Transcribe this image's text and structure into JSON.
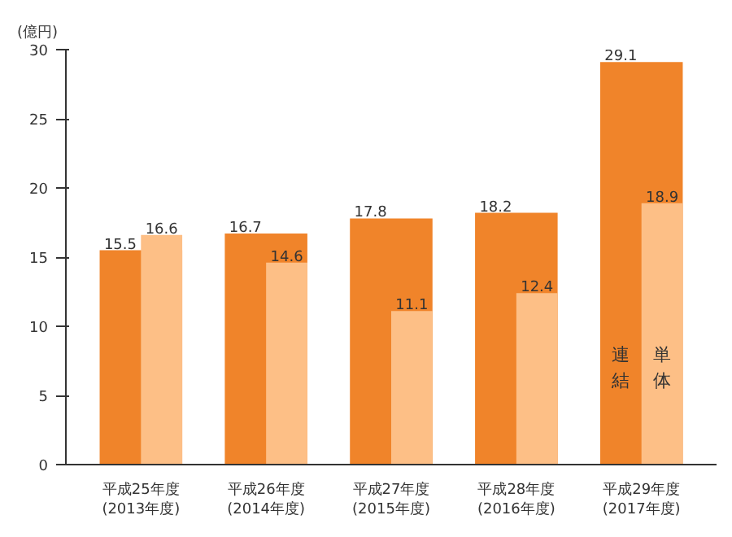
{
  "chart_data": {
    "type": "bar",
    "ylabel": "(億円)",
    "categories": [
      "平成25年度\n(2013年度)",
      "平成26年度\n(2014年度)",
      "平成27年度\n(2015年度)",
      "平成28年度\n(2016年度)",
      "平成29年度\n(2017年度)"
    ],
    "series": [
      {
        "name": "連結",
        "color": "#f0842a",
        "values": [
          15.5,
          16.7,
          17.8,
          18.2,
          29.1
        ]
      },
      {
        "name": "単体",
        "color": "#fdbf86",
        "values": [
          16.6,
          14.6,
          11.1,
          12.4,
          18.9
        ]
      }
    ],
    "ylim": [
      0,
      30
    ],
    "yticks": [
      0,
      5,
      10,
      15,
      20,
      25,
      30
    ],
    "data_labels": true,
    "grid": false
  }
}
